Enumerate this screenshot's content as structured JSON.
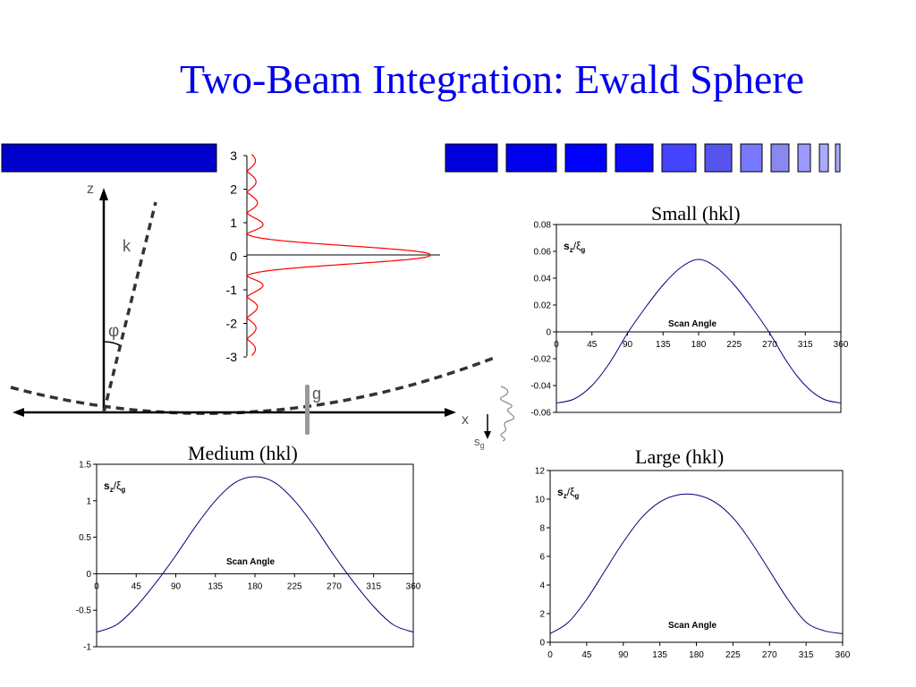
{
  "slide": {
    "title": "Two-Beam Integration: Ewald Sphere",
    "bar_colors": [
      "#0000cc",
      "#0000dd",
      "#0000ee",
      "#0000ff",
      "#0a0aff",
      "#4444ff",
      "#5555ee",
      "#7777ff",
      "#8888ee",
      "#9999ff",
      "#aaaaff"
    ]
  },
  "diagram": {
    "z_label": "z",
    "x_label": "x",
    "k_label": "k",
    "phi_label": "φ",
    "g_label": "g",
    "sg_label": "s",
    "sg_sub": "g",
    "profile_ticks": [
      "3",
      "2",
      "1",
      "0",
      "-1",
      "-2",
      "-3"
    ],
    "profile_color": "#ff0000",
    "ewald_color": "#333333",
    "line_color": "#000000"
  },
  "chart_data": [
    {
      "id": "small",
      "type": "line",
      "title": "Small (hkl)",
      "xlabel": "Scan Angle",
      "ylabel_main": "s",
      "ylabel_sub1": "z",
      "ylabel_slash": "/ξ",
      "ylabel_sub2": "g",
      "x": [
        0,
        22.5,
        45,
        67.5,
        90,
        112.5,
        135,
        157.5,
        180,
        202.5,
        225,
        247.5,
        270,
        292.5,
        315,
        337.5,
        360
      ],
      "series": [
        {
          "values": [
            -0.053,
            -0.05,
            -0.04,
            -0.023,
            -0.001,
            0.018,
            0.035,
            0.048,
            0.054,
            0.048,
            0.035,
            0.018,
            -0.001,
            -0.023,
            -0.04,
            -0.05,
            -0.053
          ]
        }
      ],
      "ylim": [
        -0.06,
        0.08
      ],
      "yticks": [
        "0.08",
        "0.06",
        "0.04",
        "0.02",
        "0",
        "-0.02",
        "-0.04",
        "-0.06"
      ],
      "xticks": [
        "0",
        "45",
        "90",
        "135",
        "180",
        "225",
        "270",
        "315",
        "360"
      ],
      "color": "#000080"
    },
    {
      "id": "medium",
      "type": "line",
      "title": "Medium (hkl)",
      "xlabel": "Scan Angle",
      "ylabel_main": "s",
      "ylabel_sub1": "z",
      "ylabel_slash": "/ξ",
      "ylabel_sub2": "g",
      "x": [
        0,
        22.5,
        45,
        67.5,
        90,
        112.5,
        135,
        157.5,
        180,
        202.5,
        225,
        247.5,
        270,
        292.5,
        315,
        337.5,
        360
      ],
      "series": [
        {
          "values": [
            -0.8,
            -0.7,
            -0.45,
            -0.12,
            0.25,
            0.65,
            1.0,
            1.25,
            1.33,
            1.25,
            1.0,
            0.65,
            0.25,
            -0.12,
            -0.45,
            -0.7,
            -0.8
          ]
        }
      ],
      "ylim": [
        -1,
        1.5
      ],
      "yticks": [
        "1.5",
        "1",
        "0.5",
        "0",
        "-0.5",
        "-1"
      ],
      "xticks": [
        "0",
        "45",
        "90",
        "135",
        "180",
        "225",
        "270",
        "315",
        "360"
      ],
      "color": "#000080"
    },
    {
      "id": "large",
      "type": "line",
      "title": "Large (hkl)",
      "xlabel": "Scan Angle",
      "ylabel_main": "s",
      "ylabel_sub1": "z",
      "ylabel_slash": "/ξ",
      "ylabel_sub2": "g",
      "x": [
        0,
        22.5,
        45,
        67.5,
        90,
        112.5,
        135,
        157.5,
        180,
        202.5,
        225,
        247.5,
        270,
        292.5,
        315,
        337.5,
        360
      ],
      "series": [
        {
          "values": [
            0.6,
            1.4,
            3.0,
            5.0,
            7.0,
            8.7,
            9.8,
            10.3,
            10.3,
            9.8,
            8.7,
            7.0,
            5.0,
            3.0,
            1.4,
            0.8,
            0.6
          ]
        }
      ],
      "ylim": [
        0,
        12
      ],
      "yticks": [
        "12",
        "10",
        "8",
        "6",
        "4",
        "2",
        "0"
      ],
      "xticks": [
        "0",
        "45",
        "90",
        "135",
        "180",
        "225",
        "270",
        "315",
        "360"
      ],
      "color": "#000080"
    }
  ]
}
